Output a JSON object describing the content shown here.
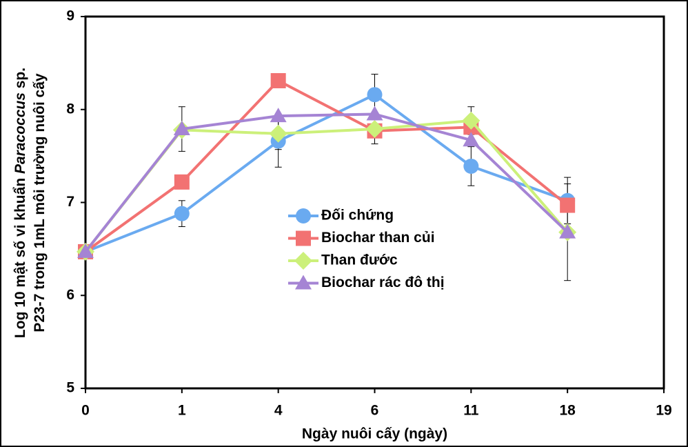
{
  "chart_data": {
    "type": "line",
    "x_label": "Ngày nuôi cấy (ngày)",
    "y_label": [
      [
        "Log 10 mật số vi khuẩn ",
        "Paracoccus",
        " sp."
      ],
      [
        "P23-7 trong 1mL môi trường nuôi cấy"
      ]
    ],
    "categories": [
      "0",
      "1",
      "4",
      "6",
      "11",
      "18",
      "19"
    ],
    "ylim": [
      5,
      9
    ],
    "yticks": [
      5,
      6,
      7,
      8,
      9
    ],
    "series": [
      {
        "name": "Đối chứng",
        "color": "#6aaaf0",
        "marker": "circle",
        "values": [
          6.47,
          6.88,
          7.66,
          8.16,
          7.39,
          7.02,
          null
        ],
        "errors": [
          0,
          0.14,
          0.28,
          0.22,
          0.21,
          0.25,
          null
        ]
      },
      {
        "name": "Biochar than củi",
        "color": "#f27272",
        "marker": "square",
        "values": [
          6.47,
          7.22,
          8.31,
          7.77,
          7.81,
          6.97,
          null
        ],
        "errors": [
          0,
          0,
          0,
          0.14,
          0,
          0,
          null
        ]
      },
      {
        "name": "Than đước",
        "color": "#ccf07a",
        "marker": "diamond",
        "values": [
          6.47,
          7.78,
          7.74,
          7.79,
          7.88,
          6.68,
          null
        ],
        "errors": [
          0,
          0,
          0.17,
          0,
          0.15,
          0,
          null
        ]
      },
      {
        "name": "Biochar rác đô thị",
        "color": "#a584d4",
        "marker": "triangle",
        "values": [
          6.47,
          7.79,
          7.93,
          7.95,
          7.67,
          6.68,
          null
        ],
        "errors": [
          0,
          0.24,
          0,
          0,
          0,
          0.52,
          null
        ]
      }
    ]
  }
}
